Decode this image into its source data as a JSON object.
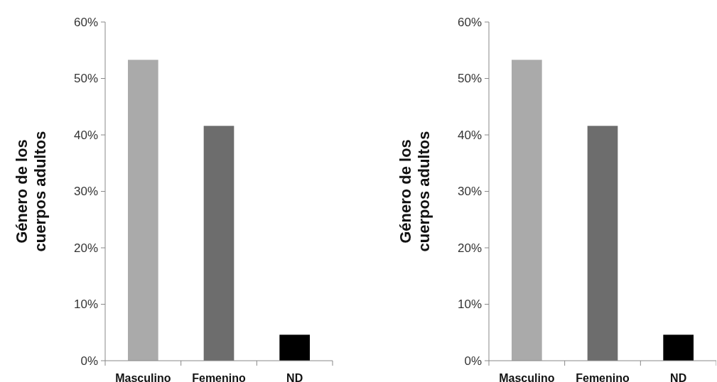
{
  "chart_data": [
    {
      "type": "bar",
      "ylabel": "Género de los\ncuerpos adultos",
      "categories": [
        "Masculino",
        "Femenino",
        "ND"
      ],
      "values": [
        53.3,
        41.6,
        4.6
      ],
      "colors": [
        "#aaaaaa",
        "#6d6d6d",
        "#000000"
      ],
      "ylim": [
        0,
        60
      ],
      "yticks": [
        {
          "value": 0,
          "label": "0%"
        },
        {
          "value": 10,
          "label": "10%"
        },
        {
          "value": 20,
          "label": "20%"
        },
        {
          "value": 30,
          "label": "30%"
        },
        {
          "value": 40,
          "label": "40%"
        },
        {
          "value": 50,
          "label": "50%"
        },
        {
          "value": 60,
          "label": "60%"
        }
      ],
      "grid": false
    },
    {
      "type": "bar",
      "ylabel": "Género de los\ncuerpos adultos",
      "categories": [
        "Masculino",
        "Femenino",
        "ND"
      ],
      "values": [
        53.3,
        41.6,
        4.6
      ],
      "colors": [
        "#aaaaaa",
        "#6d6d6d",
        "#000000"
      ],
      "ylim": [
        0,
        60
      ],
      "yticks": [
        {
          "value": 0,
          "label": "0%"
        },
        {
          "value": 10,
          "label": "10%"
        },
        {
          "value": 20,
          "label": "20%"
        },
        {
          "value": 30,
          "label": "30%"
        },
        {
          "value": 40,
          "label": "40%"
        },
        {
          "value": 50,
          "label": "50%"
        },
        {
          "value": 60,
          "label": "60%"
        }
      ],
      "grid": false
    }
  ]
}
